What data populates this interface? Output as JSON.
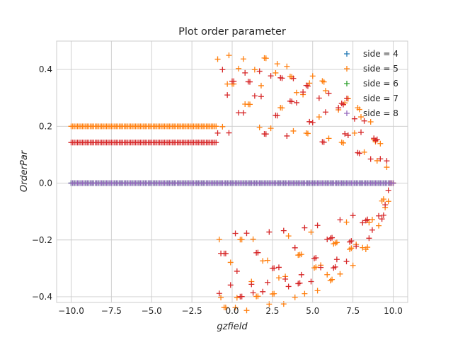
{
  "chart_data": {
    "type": "scatter",
    "title": "Plot order parameter",
    "xlabel": "gzfield",
    "ylabel": "OrderPar",
    "xlim": [
      -10.9,
      10.9
    ],
    "ylim": [
      -0.42,
      0.5
    ],
    "xticks": [
      -10.0,
      -7.5,
      -5.0,
      -2.5,
      0.0,
      2.5,
      5.0,
      7.5,
      10.0
    ],
    "xtick_labels": [
      "−10.0",
      "−7.5",
      "−5.0",
      "−2.5",
      "0.0",
      "2.5",
      "5.0",
      "7.5",
      "10.0"
    ],
    "yticks": [
      -0.4,
      -0.2,
      0.0,
      0.2,
      0.4
    ],
    "ytick_labels": [
      "−0.4",
      "−0.2",
      "0.0",
      "0.2",
      "0.4"
    ],
    "grid": true,
    "legend_position": "top-right",
    "marker": "+",
    "x_range": {
      "start": -10,
      "stop": 10,
      "count": 201
    },
    "series": [
      {
        "name": "side = 4",
        "color": "#1f77b4",
        "ordered_x_end": 10.0,
        "ordered_value": 0.0,
        "orbit_amplitude": 0.45,
        "orbit_radius_x": 9.8
      },
      {
        "name": "side = 5",
        "color": "#ff7f0e",
        "ordered_x_end": -1.0,
        "ordered_value": 0.2,
        "orbit_amplitude": 0.45,
        "orbit_radius_x": 9.8
      },
      {
        "name": "side = 6",
        "color": "#2ca02c",
        "ordered_x_end": 10.0,
        "ordered_value": 0.0,
        "orbit_amplitude": 0.45,
        "orbit_radius_x": 9.8
      },
      {
        "name": "side = 7",
        "color": "#d62728",
        "ordered_x_end": -1.0,
        "ordered_value": 0.143,
        "orbit_amplitude": 0.4,
        "orbit_radius_x": 9.8
      },
      {
        "name": "side = 8",
        "color": "#9467bd",
        "ordered_x_end": 10.0,
        "ordered_value": 0.0,
        "orbit_amplitude": 0.45,
        "orbit_radius_x": 9.8
      }
    ]
  }
}
